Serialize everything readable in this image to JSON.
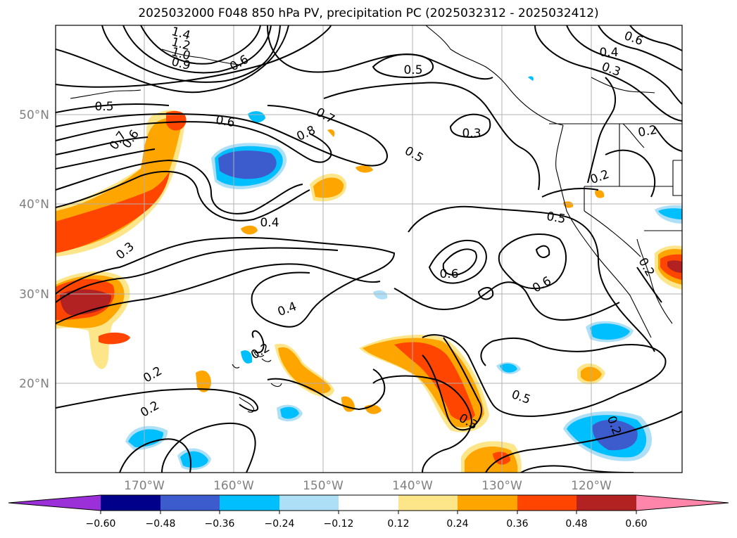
{
  "title": "2025032000 F048 850 hPa PV, precipitation PC (2025032312 - 2025032412)",
  "lat_labels": [
    "50°N",
    "40°N",
    "30°N",
    "20°N"
  ],
  "lon_labels": [
    "170°W",
    "160°W",
    "150°W",
    "140°W",
    "130°W",
    "120°W"
  ],
  "colorbar": {
    "ticks": [
      "−0.60",
      "−0.48",
      "−0.36",
      "−0.24",
      "−0.12",
      "0.12",
      "0.24",
      "0.36",
      "0.48",
      "0.60"
    ],
    "colors": {
      "under": "#9b30d9",
      "neg_060_048": "#00008b",
      "neg_048_036": "#3c5bcd",
      "neg_036_024": "#00bfff",
      "neg_024_012": "#addff7",
      "neutral": "#ffffff",
      "pos_012_024": "#fde68a",
      "pos_024_036": "#ffa500",
      "pos_036_048": "#ff4500",
      "pos_048_060": "#b22222",
      "over": "#ff85aa"
    }
  },
  "contour_labels": [
    "1.4",
    "1.2",
    "1.0",
    "0.9",
    "0.6",
    "0.5",
    "0.5",
    "0.6",
    "0.4",
    "0.3",
    "0.6",
    "0.7",
    "0.8",
    "0.5",
    "0.3",
    "0.7",
    "0.6",
    "0.2",
    "0.5",
    "0.4",
    "0.3",
    "0.6",
    "0.6",
    "0.2",
    "0.4",
    "0.2",
    "0.2",
    "0.2",
    "0.5",
    "0.3",
    "0.2",
    "0.2"
  ]
}
